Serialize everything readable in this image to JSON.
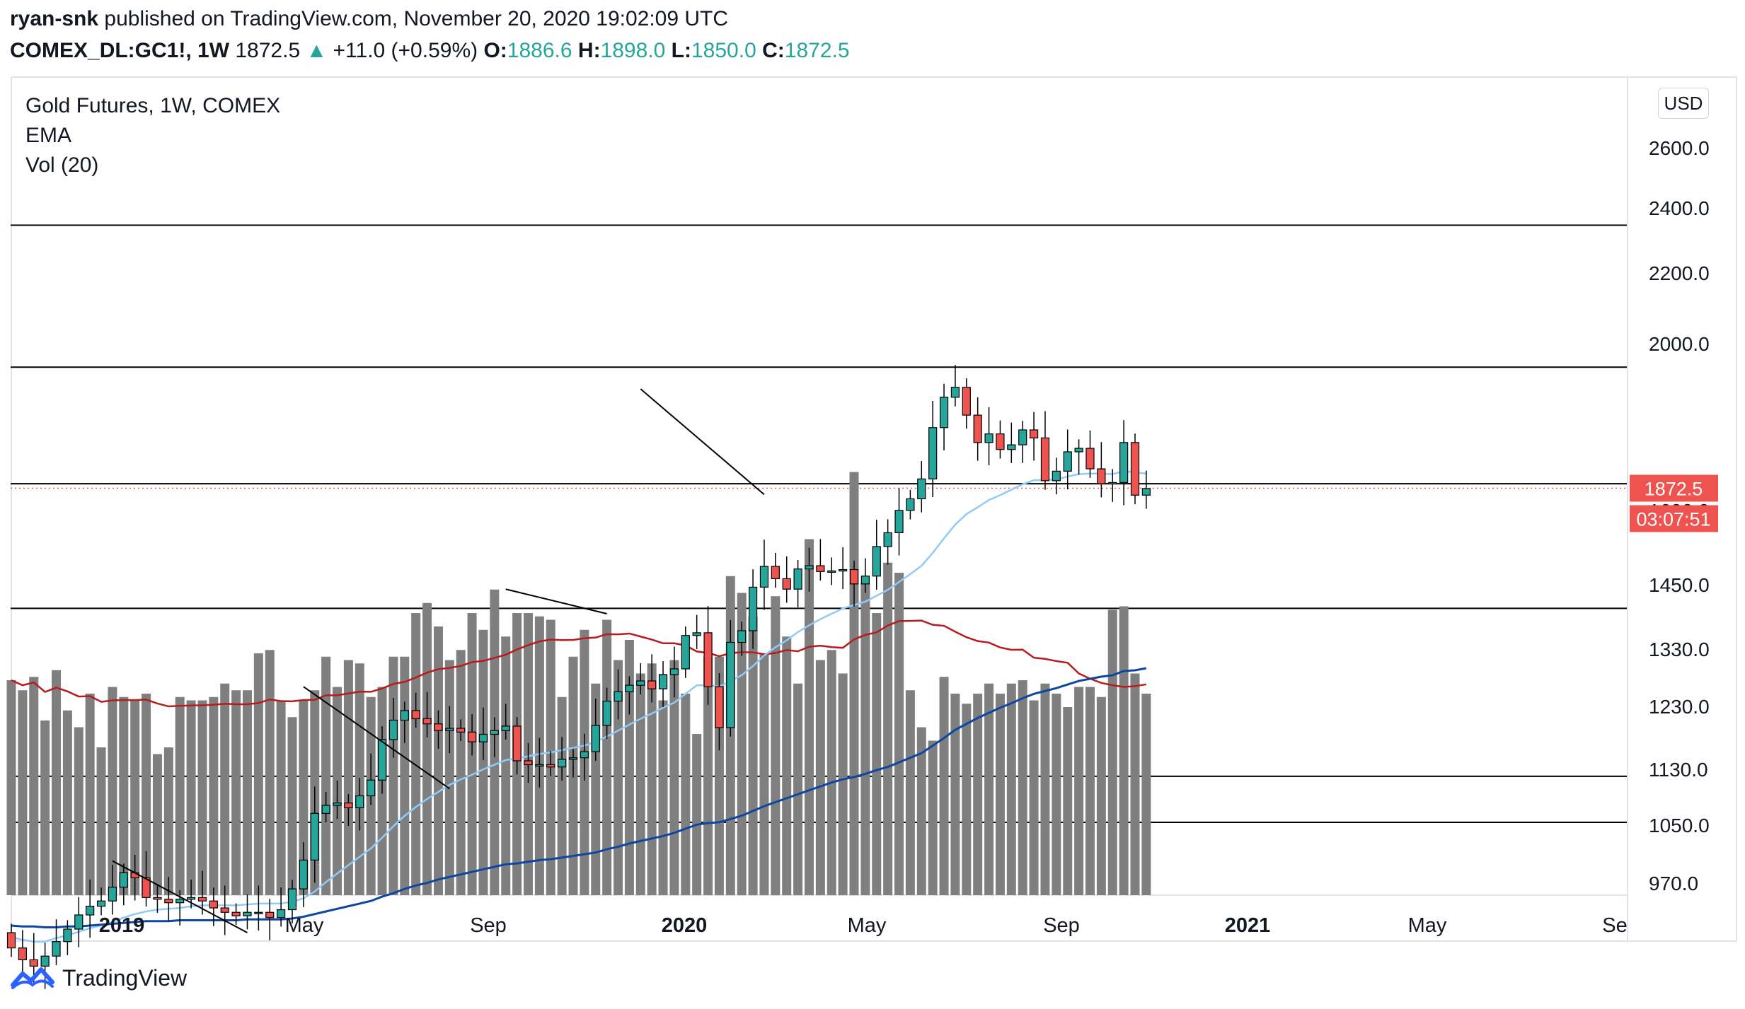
{
  "header": {
    "author": "ryan-snk",
    "published_text": " published on TradingView.com, November 20, 2020 19:02:09 UTC",
    "symbol": "COMEX_DL:GC1!, 1W",
    "last": "1872.5",
    "change_arrow": "▲",
    "change": "+11.0 (+0.59%)",
    "o_label": "O:",
    "o_value": "1886.6",
    "h_label": "H:",
    "h_value": "1898.0",
    "l_label": "L:",
    "l_value": "1850.0",
    "c_label": "C:",
    "c_value": "1872.5"
  },
  "legend": {
    "title": "Gold Futures, 1W, COMEX",
    "ema": "EMA",
    "volume": "Vol (20)"
  },
  "currency_button": "USD",
  "logo_text": "TradingView",
  "colors": {
    "up": "#26a69a",
    "down": "#ef5350",
    "ema_fast": "#90caf9",
    "ema_slow": "#0d47a1",
    "volume_bar": "#7f7f7f",
    "volume_ma": "#b71c1c",
    "price_label_bg": "#ef5350"
  },
  "chart_data": {
    "type": "candlestick",
    "title": "Gold Futures, 1W, COMEX",
    "timeframe": "1W",
    "x_ticks": [
      "2019",
      "May",
      "Sep",
      "2020",
      "May",
      "Sep",
      "2021",
      "May",
      "Se"
    ],
    "y_ticks": [
      "2600.0",
      "2400.0",
      "2200.0",
      "2000.0",
      "1600.0",
      "1450.0",
      "1330.0",
      "1230.0",
      "1130.0",
      "1050.0",
      "970.0"
    ],
    "y_scale": "log",
    "last_price_label": "1872.5",
    "countdown_label": "03:07:51",
    "closes": [
      1245,
      1232,
      1225,
      1236,
      1252,
      1266,
      1282,
      1292,
      1298,
      1314,
      1331,
      1325,
      1302,
      1300,
      1296,
      1300,
      1302,
      1298,
      1290,
      1285,
      1281,
      1285,
      1285,
      1279,
      1288,
      1312,
      1346,
      1403,
      1413,
      1416,
      1410,
      1425,
      1445,
      1498,
      1524,
      1537,
      1526,
      1519,
      1510,
      1513,
      1508,
      1495,
      1505,
      1510,
      1516,
      1470,
      1465,
      1465,
      1462,
      1472,
      1474,
      1482,
      1517,
      1550,
      1563,
      1572,
      1578,
      1567,
      1587,
      1595,
      1643,
      1647,
      1570,
      1514,
      1633,
      1650,
      1715,
      1747,
      1728,
      1712,
      1743,
      1748,
      1739,
      1740,
      1742,
      1720,
      1732,
      1778,
      1800,
      1836,
      1855,
      1888,
      1976,
      2030,
      2048,
      1998,
      1950,
      1965,
      1938,
      1946,
      1972,
      1958,
      1885,
      1901,
      1934,
      1940,
      1905,
      1880,
      1882,
      1950,
      1861,
      1872
    ],
    "ema_fast": [
      1257,
      1254,
      1252,
      1252,
      1256,
      1259,
      1263,
      1267,
      1270,
      1274,
      1279,
      1283,
      1286,
      1288,
      1289,
      1290,
      1292,
      1293,
      1293,
      1293,
      1293,
      1294,
      1295,
      1295,
      1295,
      1297,
      1301,
      1309,
      1320,
      1330,
      1340,
      1350,
      1360,
      1373,
      1387,
      1400,
      1411,
      1421,
      1430,
      1439,
      1446,
      1452,
      1459,
      1465,
      1471,
      1473,
      1476,
      1479,
      1481,
      1484,
      1487,
      1490,
      1495,
      1502,
      1510,
      1518,
      1526,
      1533,
      1541,
      1548,
      1560,
      1572,
      1572,
      1570,
      1578,
      1586,
      1599,
      1614,
      1626,
      1636,
      1648,
      1658,
      1667,
      1675,
      1683,
      1688,
      1693,
      1702,
      1711,
      1723,
      1735,
      1748,
      1768,
      1791,
      1813,
      1830,
      1841,
      1853,
      1861,
      1870,
      1879,
      1886,
      1886,
      1887,
      1892,
      1896,
      1897,
      1897,
      1896,
      1901,
      1899,
      1897
    ],
    "ema_slow": [
      1270,
      1269,
      1269,
      1268,
      1268,
      1269,
      1269,
      1270,
      1271,
      1272,
      1273,
      1274,
      1275,
      1275,
      1275,
      1276,
      1276,
      1276,
      1276,
      1276,
      1276,
      1277,
      1277,
      1277,
      1277,
      1278,
      1280,
      1283,
      1286,
      1289,
      1292,
      1295,
      1298,
      1303,
      1307,
      1312,
      1316,
      1319,
      1323,
      1326,
      1329,
      1332,
      1335,
      1338,
      1341,
      1342,
      1344,
      1346,
      1347,
      1349,
      1351,
      1353,
      1355,
      1359,
      1362,
      1366,
      1369,
      1372,
      1375,
      1379,
      1384,
      1389,
      1391,
      1392,
      1396,
      1400,
      1406,
      1412,
      1417,
      1422,
      1427,
      1432,
      1437,
      1442,
      1446,
      1449,
      1453,
      1458,
      1462,
      1468,
      1474,
      1480,
      1490,
      1500,
      1511,
      1519,
      1527,
      1534,
      1541,
      1547,
      1554,
      1560,
      1564,
      1568,
      1573,
      1578,
      1581,
      1584,
      1586,
      1592,
      1593,
      1596
    ],
    "volume": [
      64,
      61,
      65,
      52,
      67,
      55,
      50,
      60,
      44,
      62,
      59,
      58,
      60,
      42,
      44,
      59,
      58,
      58,
      59,
      63,
      61,
      61,
      72,
      73,
      58,
      53,
      58,
      61,
      71,
      62,
      70,
      69,
      59,
      62,
      71,
      71,
      84,
      87,
      80,
      70,
      73,
      84,
      79,
      91,
      77,
      84,
      84,
      83,
      82,
      59,
      71,
      79,
      63,
      82,
      70,
      76,
      66,
      69,
      58,
      70,
      60,
      48,
      71,
      71,
      95,
      90,
      83,
      72,
      89,
      77,
      63,
      106,
      70,
      73,
      66,
      126,
      93,
      84,
      99,
      96,
      61,
      50,
      46,
      65,
      60,
      57,
      60,
      63,
      60,
      63,
      64,
      58,
      63,
      60,
      56,
      62,
      62,
      59,
      85,
      86,
      66,
      60
    ]
  }
}
